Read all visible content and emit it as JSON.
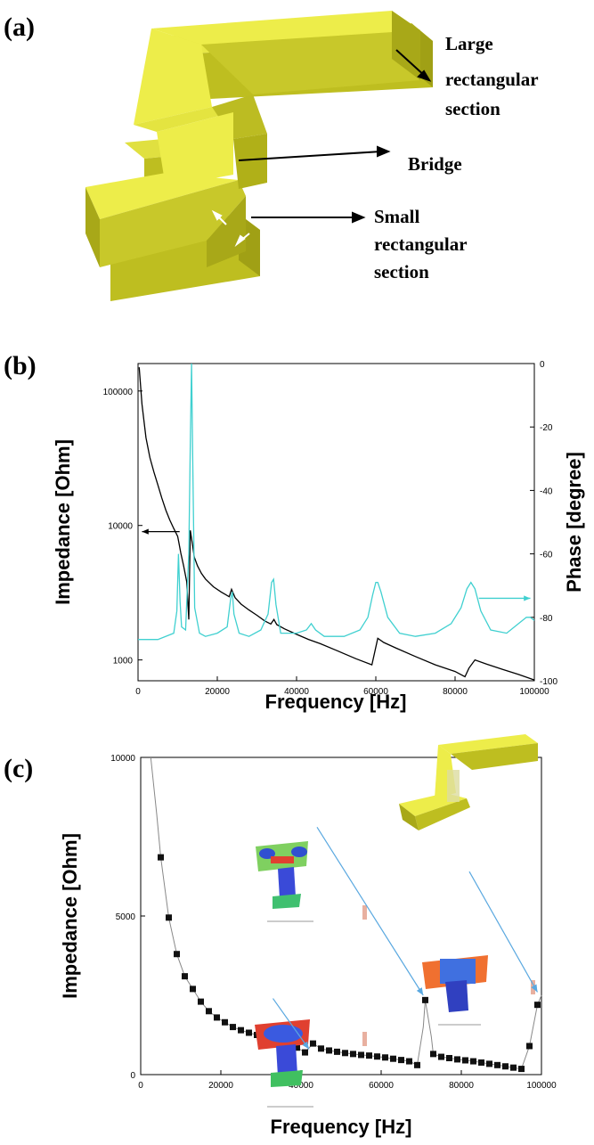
{
  "panels": [
    {
      "id": "a",
      "label": "(a)"
    },
    {
      "id": "b",
      "label": "(b)"
    },
    {
      "id": "c",
      "label": "(c)"
    }
  ],
  "panel_a": {
    "type": "diagram",
    "colors": {
      "gold_top": "#e8e845",
      "gold_front": "#bebe20",
      "gold_side": "#a0a015"
    },
    "annotations": [
      {
        "id": "large",
        "lines": [
          "Large",
          "rectangular",
          "section"
        ]
      },
      {
        "id": "bridge",
        "lines": [
          "Bridge"
        ]
      },
      {
        "id": "small",
        "lines": [
          "Small",
          "rectangular",
          "section"
        ]
      }
    ]
  },
  "chart_data": [
    {
      "panel": "b",
      "type": "line",
      "xlabel": "Frequency [Hz]",
      "ylabel": "Impedance [Ohm]",
      "y2label": "Phase [degree]",
      "xlim": [
        0,
        100000
      ],
      "ylim": [
        700,
        160000
      ],
      "yscale": "log",
      "y2lim": [
        -100,
        0
      ],
      "x_ticks": [
        "0",
        "20000",
        "40000",
        "60000",
        "80000",
        "100000"
      ],
      "y_ticks": [
        "1000",
        "10000",
        "100000"
      ],
      "y2_ticks": [
        "0",
        "-20",
        "-40",
        "-60",
        "-80",
        "-100"
      ],
      "series": [
        {
          "axis": "left",
          "color": "#000000",
          "x": [
            300,
            1000,
            2000,
            3000,
            4000,
            5000,
            6000,
            7000,
            8000,
            9000,
            10000,
            10300,
            10800,
            11500,
            12300,
            12800,
            13200,
            13700,
            14200,
            15000,
            16000,
            17000,
            19000,
            21000,
            23000,
            23600,
            24500,
            26000,
            28000,
            30000,
            32000,
            33500,
            34300,
            35000,
            37000,
            40000,
            43000,
            46000,
            50000,
            55000,
            59000,
            60500,
            62000,
            65000,
            70000,
            75000,
            80000,
            82500,
            83500,
            85000,
            88000,
            92000,
            96000,
            100000
          ],
          "y": [
            150000,
            80000,
            45000,
            32000,
            25000,
            20000,
            16000,
            13000,
            11000,
            9500,
            8300,
            7500,
            6200,
            5000,
            3800,
            2000,
            9200,
            7300,
            5800,
            5000,
            4400,
            4000,
            3500,
            3200,
            2950,
            3350,
            2900,
            2600,
            2350,
            2150,
            1950,
            1850,
            2000,
            1830,
            1700,
            1550,
            1420,
            1320,
            1180,
            1020,
            920,
            1450,
            1350,
            1230,
            1060,
            920,
            820,
            750,
            870,
            1000,
            930,
            850,
            780,
            710
          ]
        },
        {
          "axis": "right",
          "color": "#40d0d0",
          "x": [
            0,
            5000,
            9000,
            9800,
            10200,
            10600,
            11000,
            12000,
            12800,
            13200,
            13500,
            13800,
            14300,
            15500,
            17000,
            20000,
            22500,
            23400,
            23800,
            24200,
            25500,
            28000,
            31000,
            32800,
            33700,
            34200,
            34800,
            36000,
            40000,
            42500,
            43700,
            44800,
            47000,
            52000,
            56000,
            58000,
            59200,
            60000,
            60500,
            61300,
            63000,
            66000,
            70000,
            75000,
            79000,
            81500,
            83000,
            84000,
            85000,
            86500,
            89000,
            93000,
            96000,
            98000,
            99000,
            100000
          ],
          "y": [
            -87,
            -87,
            -85,
            -78,
            -60,
            -75,
            -83,
            -84,
            -60,
            -25,
            0,
            -30,
            -77,
            -85,
            -86,
            -85,
            -83,
            -74,
            -72,
            -79,
            -85,
            -86,
            -84,
            -79,
            -69,
            -68,
            -76,
            -85,
            -85,
            -84,
            -82,
            -84,
            -86,
            -86,
            -84,
            -80,
            -73,
            -69,
            -69,
            -72,
            -80,
            -85,
            -86,
            -85,
            -82,
            -77,
            -71,
            -69,
            -71,
            -78,
            -84,
            -85,
            -82,
            -80,
            -80,
            -81
          ]
        }
      ],
      "annotations": [
        {
          "type": "arrow",
          "axis": "left",
          "direction": "left",
          "x": [
            10500,
            1000
          ],
          "y": 9000
        },
        {
          "type": "arrow",
          "axis": "right",
          "direction": "right",
          "x": [
            86000,
            99000
          ],
          "y": -74
        }
      ]
    },
    {
      "panel": "c",
      "type": "scatter",
      "xlabel": "Frequency [Hz]",
      "ylabel": "Impedance  [Ohm]",
      "xlim": [
        0,
        100000
      ],
      "ylim": [
        0,
        10000
      ],
      "x_ticks": [
        "0",
        "20000",
        "40000",
        "60000",
        "80000",
        "100000"
      ],
      "y_ticks": [
        "0",
        "5000",
        "10000"
      ],
      "x": [
        5000,
        7000,
        9000,
        11000,
        13000,
        15000,
        17000,
        19000,
        21000,
        23000,
        25000,
        27000,
        29000,
        31000,
        33000,
        35000,
        37000,
        39000,
        41000,
        43000,
        45000,
        47000,
        49000,
        51000,
        53000,
        55000,
        57000,
        59000,
        61000,
        63000,
        65000,
        67000,
        69000,
        71000,
        73000,
        75000,
        77000,
        79000,
        81000,
        83000,
        85000,
        87000,
        89000,
        91000,
        93000,
        95000,
        97000,
        99000
      ],
      "y": [
        6850,
        4950,
        3800,
        3100,
        2700,
        2300,
        2000,
        1800,
        1650,
        1500,
        1400,
        1320,
        1250,
        1180,
        1100,
        1000,
        920,
        850,
        700,
        980,
        820,
        760,
        720,
        680,
        650,
        620,
        600,
        570,
        540,
        500,
        460,
        420,
        300,
        2350,
        650,
        560,
        520,
        480,
        450,
        420,
        380,
        340,
        300,
        260,
        220,
        180,
        900,
        2200
      ],
      "curve_x": [
        2500,
        4000,
        5000,
        7000,
        9000,
        11000,
        13000,
        15000,
        17000,
        19000,
        21000,
        23000,
        25000,
        27000,
        29000,
        31000,
        33000,
        35000,
        37000,
        39000,
        41000,
        43000,
        45000,
        47000,
        49000,
        51000,
        53000,
        55000,
        57000,
        59000,
        61000,
        63000,
        65000,
        67000,
        69000,
        70500,
        71000,
        72500,
        73000,
        75000,
        77000,
        79000,
        81000,
        83000,
        85000,
        87000,
        89000,
        91000,
        93000,
        95000,
        97000,
        99000,
        100000
      ],
      "curve_y": [
        10000,
        8200,
        6850,
        4950,
        3800,
        3100,
        2700,
        2300,
        2000,
        1800,
        1650,
        1500,
        1400,
        1320,
        1250,
        1180,
        1100,
        1000,
        920,
        850,
        700,
        980,
        820,
        760,
        720,
        680,
        650,
        620,
        600,
        570,
        540,
        500,
        460,
        420,
        300,
        1500,
        2350,
        1200,
        650,
        560,
        520,
        480,
        450,
        420,
        380,
        340,
        300,
        260,
        220,
        180,
        900,
        2200,
        2500
      ],
      "inset_arrows": [
        {
          "from": [
            33000,
            2400
          ],
          "to": [
            42000,
            800
          ]
        },
        {
          "from": [
            44000,
            7800
          ],
          "to": [
            70500,
            2500
          ]
        },
        {
          "from": [
            82000,
            6400
          ],
          "to": [
            99000,
            2600
          ]
        }
      ],
      "colors": {
        "markers": "#111111",
        "curve": "#888888",
        "arrows": "#5aa8e0"
      }
    }
  ]
}
